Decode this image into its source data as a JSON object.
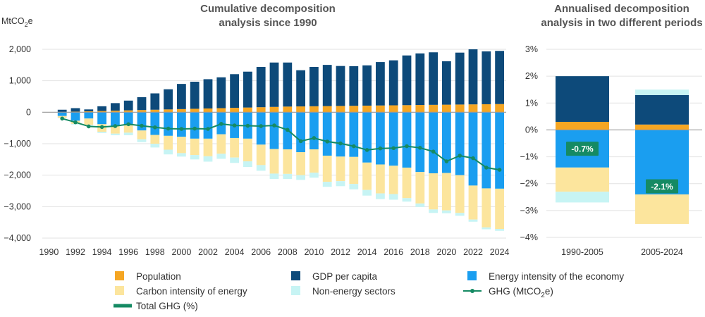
{
  "chart_data": [
    {
      "type": "bar",
      "title_lines": [
        "Cumulative decomposition",
        "analysis since 1990"
      ],
      "ylabel": "MtCO2e",
      "ylabel_parts": [
        "MtCO",
        "2",
        "e"
      ],
      "ylim": [
        -4000,
        2000
      ],
      "yticks": [
        2000,
        1000,
        0,
        -1000,
        -2000,
        -3000,
        -4000
      ],
      "ytick_labels": [
        "2,000",
        "1,000",
        "0",
        "−1,000",
        "−2,000",
        "−3,000",
        "−4,000"
      ],
      "x": [
        1990,
        1991,
        1992,
        1993,
        1994,
        1995,
        1996,
        1997,
        1998,
        1999,
        2000,
        2001,
        2002,
        2003,
        2004,
        2005,
        2006,
        2007,
        2008,
        2009,
        2010,
        2011,
        2012,
        2013,
        2014,
        2015,
        2016,
        2017,
        2018,
        2019,
        2020,
        2021,
        2022,
        2023,
        2024
      ],
      "xtick_labels": [
        "1990",
        "1992",
        "1994",
        "1996",
        "1998",
        "2000",
        "2002",
        "2004",
        "2006",
        "2008",
        "2010",
        "2012",
        "2014",
        "2016",
        "2018",
        "2020",
        "2022",
        "2024"
      ],
      "grid": true,
      "series": [
        {
          "key": "population",
          "color": "#f5a623",
          "values": [
            0,
            10,
            20,
            30,
            40,
            50,
            60,
            70,
            80,
            90,
            100,
            110,
            120,
            130,
            140,
            150,
            160,
            170,
            180,
            185,
            190,
            195,
            200,
            205,
            210,
            215,
            220,
            225,
            230,
            235,
            240,
            245,
            250,
            255,
            260
          ]
        },
        {
          "key": "gdp",
          "color": "#0d4a7a",
          "values": [
            0,
            70,
            110,
            60,
            150,
            240,
            310,
            410,
            520,
            640,
            800,
            860,
            930,
            980,
            1070,
            1140,
            1280,
            1410,
            1400,
            1150,
            1250,
            1310,
            1270,
            1260,
            1280,
            1380,
            1430,
            1580,
            1640,
            1670,
            1380,
            1650,
            1750,
            1680,
            1690
          ]
        },
        {
          "key": "energy",
          "color": "#1a9ef0",
          "values": [
            0,
            -120,
            -270,
            -200,
            -380,
            -430,
            -420,
            -580,
            -720,
            -750,
            -780,
            -840,
            -840,
            -700,
            -820,
            -840,
            -1030,
            -1170,
            -1180,
            -1270,
            -1180,
            -1380,
            -1410,
            -1420,
            -1600,
            -1660,
            -1700,
            -1760,
            -1900,
            -1940,
            -1930,
            -2000,
            -2330,
            -2420,
            -2430
          ]
        },
        {
          "key": "carbon",
          "color": "#fce59d",
          "values": [
            0,
            -60,
            -100,
            -200,
            -240,
            -250,
            -230,
            -280,
            -280,
            -440,
            -520,
            -520,
            -560,
            -620,
            -620,
            -720,
            -650,
            -780,
            -780,
            -730,
            -740,
            -830,
            -780,
            -860,
            -870,
            -920,
            -900,
            -970,
            -1000,
            -1150,
            -1190,
            -1200,
            -1080,
            -1240,
            -1280
          ]
        },
        {
          "key": "nonenergy",
          "color": "#c7f4f4",
          "values": [
            0,
            -10,
            -20,
            -30,
            -40,
            -50,
            -80,
            -90,
            -120,
            -150,
            -110,
            -140,
            -170,
            -160,
            -170,
            -180,
            -180,
            -170,
            -160,
            -150,
            -160,
            -160,
            -160,
            -170,
            -180,
            -180,
            -180,
            -110,
            -110,
            -110,
            -90,
            -90,
            -70,
            -60,
            -60
          ]
        }
      ],
      "line": {
        "key": "ghg",
        "color": "#158a63",
        "values": [
          0,
          -200,
          -320,
          -450,
          -470,
          -440,
          -380,
          -430,
          -480,
          -520,
          -530,
          -520,
          -530,
          -370,
          -420,
          -430,
          -440,
          -420,
          -560,
          -920,
          -820,
          -930,
          -990,
          -1080,
          -1200,
          -1150,
          -1140,
          -1080,
          -1130,
          -1250,
          -1560,
          -1380,
          -1460,
          -1760,
          -1830
        ]
      }
    },
    {
      "type": "bar",
      "title_lines": [
        "Annualised decomposition",
        "analysis in two different periods"
      ],
      "ylim": [
        -4,
        3
      ],
      "yticks": [
        3,
        2,
        1,
        0,
        -1,
        -2,
        -3,
        -4
      ],
      "ytick_labels": [
        "3%",
        "2%",
        "1%",
        "0%",
        "−1%",
        "−2%",
        "−3%",
        "−4%"
      ],
      "categories": [
        "1990-2005",
        "2005-2024"
      ],
      "series": [
        {
          "key": "population",
          "color": "#f5a623",
          "values": [
            0.3,
            0.2
          ]
        },
        {
          "key": "gdp",
          "color": "#0d4a7a",
          "values": [
            1.7,
            1.1
          ]
        },
        {
          "key": "energy",
          "color": "#1a9ef0",
          "values": [
            -1.4,
            -2.4
          ]
        },
        {
          "key": "carbon",
          "color": "#fce59d",
          "values": [
            -0.9,
            -1.1
          ]
        },
        {
          "key": "nonenergy",
          "color": "#c7f4f4",
          "values": [
            -0.4,
            0.2
          ]
        }
      ],
      "total_labels": [
        "-0.7%",
        "-2.1%"
      ],
      "total_values": [
        -0.7,
        -2.1
      ],
      "total_color": "#158a63"
    }
  ],
  "legend": [
    {
      "key": "population",
      "label": "Population",
      "type": "box",
      "color": "#f5a623"
    },
    {
      "key": "gdp",
      "label": "GDP per capita",
      "type": "box",
      "color": "#0d4a7a"
    },
    {
      "key": "energy",
      "label": "Energy intensity of the economy",
      "type": "box",
      "color": "#1a9ef0"
    },
    {
      "key": "carbon",
      "label": "Carbon intensity of energy",
      "type": "box",
      "color": "#fce59d"
    },
    {
      "key": "nonenergy",
      "label": "Non-energy sectors",
      "type": "box",
      "color": "#c7f4f4"
    },
    {
      "key": "ghg",
      "label": "GHG (MtCO2e)",
      "label_parts": [
        "GHG (MtCO",
        "2",
        "e)"
      ],
      "type": "line-dot",
      "color": "#158a63"
    },
    {
      "key": "total",
      "label": "Total GHG (%)",
      "type": "thick-line",
      "color": "#158a63"
    }
  ]
}
